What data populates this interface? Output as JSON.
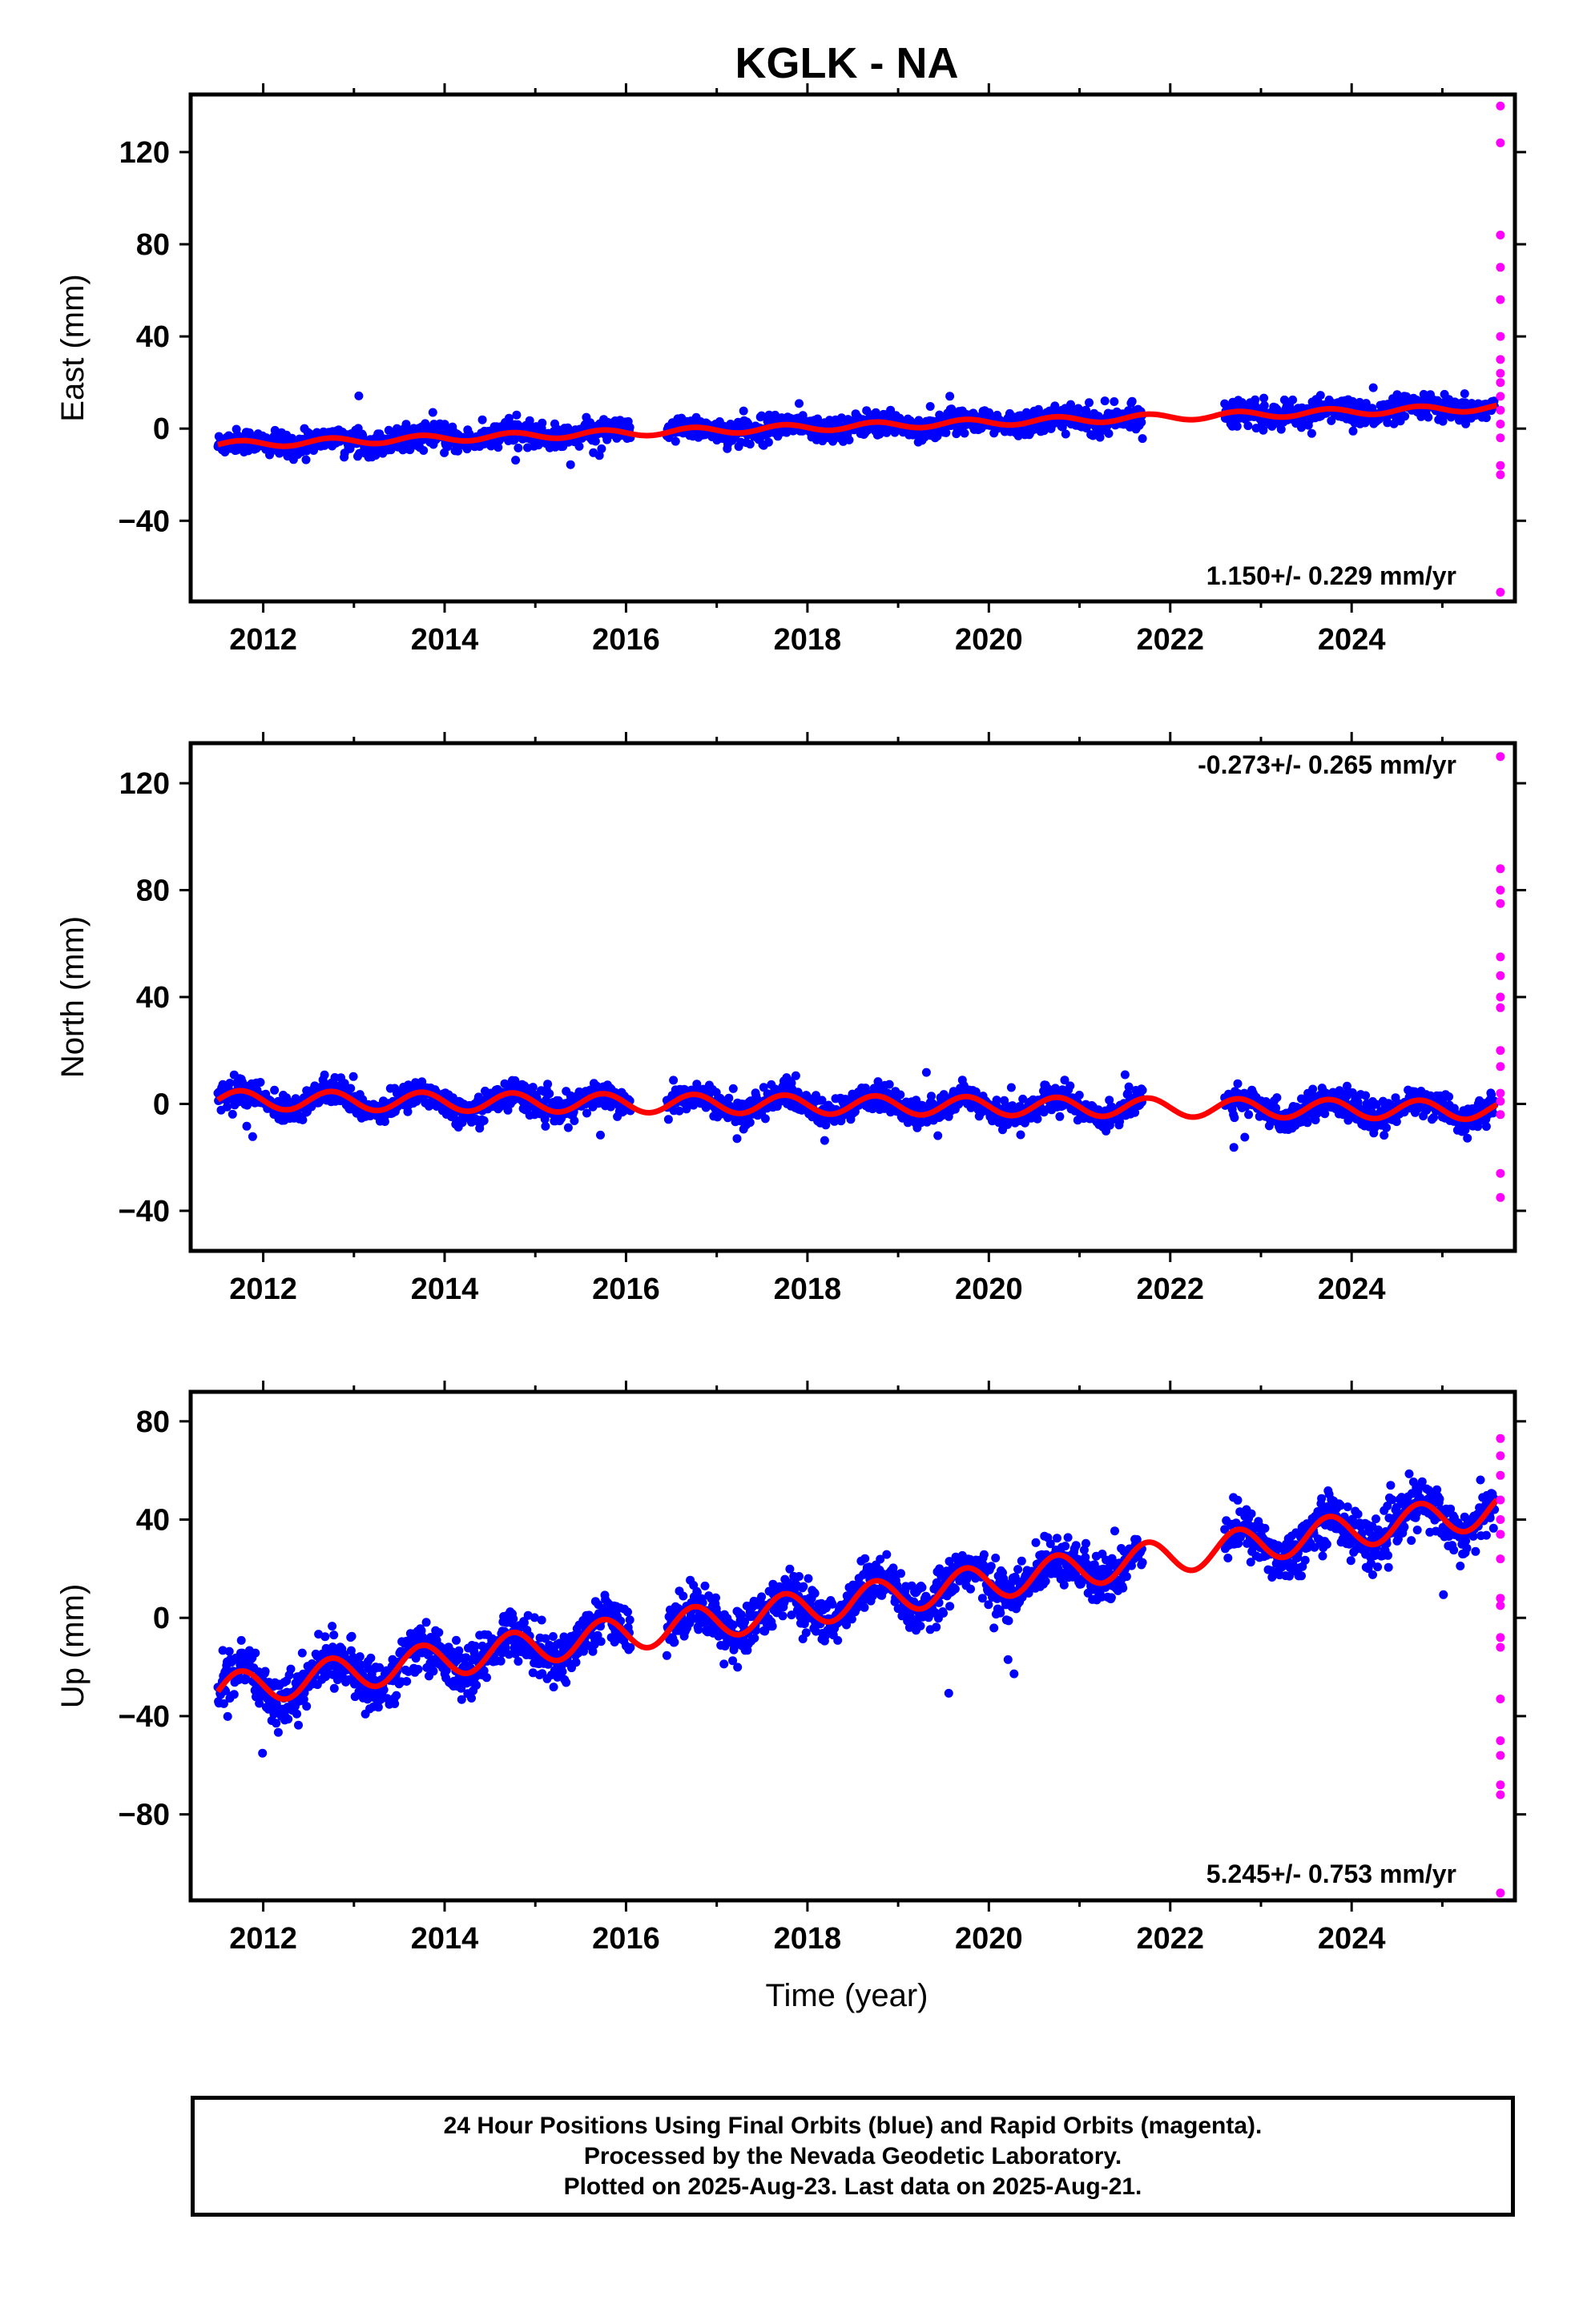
{
  "title": "KGLK - NA",
  "xlabel": "Time (year)",
  "colors": {
    "final": "#0000ff",
    "rapid": "#ff00ff",
    "model": "#ff0000",
    "frame": "#000000"
  },
  "footer": {
    "line1": "24 Hour Positions Using Final Orbits (blue) and Rapid Orbits (magenta).",
    "line2": "Processed by the Nevada Geodetic Laboratory.",
    "line3": "Plotted on 2025-Aug-23. Last data on 2025-Aug-21."
  },
  "chart_data": [
    {
      "type": "scatter",
      "component": "east",
      "ylabel": "East (mm)",
      "rate_label": "1.150+/- 0.229 mm/yr",
      "xlim": [
        2011.2,
        2025.8
      ],
      "ylim": [
        -75,
        145
      ],
      "xticks": [
        2012,
        2014,
        2016,
        2018,
        2020,
        2022,
        2024
      ],
      "yticks": [
        -40,
        0,
        40,
        80,
        120
      ],
      "ytick_labels": [
        "−40",
        "0",
        "40",
        "80",
        "120"
      ],
      "rate_mm_per_yr": 1.15,
      "model_intercept_mm": -7,
      "model_start_year": 2011.5,
      "annual_amplitude_mm": 1.5,
      "gaps": [
        [
          2021.7,
          2022.6
        ]
      ],
      "scatter_mm": 2.5,
      "rapid_values_mm": [
        140,
        124,
        84,
        70,
        56,
        40,
        30,
        24,
        20,
        14,
        8,
        2,
        -4,
        -16,
        -20,
        -71
      ]
    },
    {
      "type": "scatter",
      "component": "north",
      "ylabel": "North (mm)",
      "rate_label": "-0.273+/- 0.265 mm/yr",
      "xlim": [
        2011.2,
        2025.8
      ],
      "ylim": [
        -55,
        135
      ],
      "xticks": [
        2012,
        2014,
        2016,
        2018,
        2020,
        2022,
        2024
      ],
      "yticks": [
        -40,
        0,
        40,
        80,
        120
      ],
      "ytick_labels": [
        "−40",
        "0",
        "40",
        "80",
        "120"
      ],
      "rate_mm_per_yr": -0.273,
      "model_intercept_mm": 1.5,
      "model_start_year": 2011.5,
      "annual_amplitude_mm": 3.5,
      "gaps": [
        [
          2021.7,
          2022.6
        ]
      ],
      "scatter_mm": 2.5,
      "rapid_values_mm": [
        130,
        88,
        80,
        75,
        55,
        48,
        40,
        36,
        20,
        14,
        4,
        1,
        -4,
        -26,
        -35
      ]
    },
    {
      "type": "scatter",
      "component": "up",
      "ylabel": "Up (mm)",
      "rate_label": "5.245+/- 0.753 mm/yr",
      "xlim": [
        2011.2,
        2025.8
      ],
      "ylim": [
        -115,
        92
      ],
      "xticks": [
        2012,
        2014,
        2016,
        2018,
        2020,
        2022,
        2024
      ],
      "yticks": [
        -80,
        -40,
        0,
        40,
        80
      ],
      "ytick_labels": [
        "−80",
        "−40",
        "0",
        "40",
        "80"
      ],
      "rate_mm_per_yr": 5.245,
      "model_intercept_mm": -30,
      "model_start_year": 2011.5,
      "annual_amplitude_mm": 7,
      "gaps": [
        [
          2021.7,
          2022.6
        ]
      ],
      "scatter_mm": 5,
      "rapid_values_mm": [
        73,
        66,
        58,
        48,
        40,
        34,
        24,
        8,
        5,
        -8,
        -12,
        -33,
        -50,
        -56,
        -68,
        -72,
        -112
      ]
    }
  ]
}
